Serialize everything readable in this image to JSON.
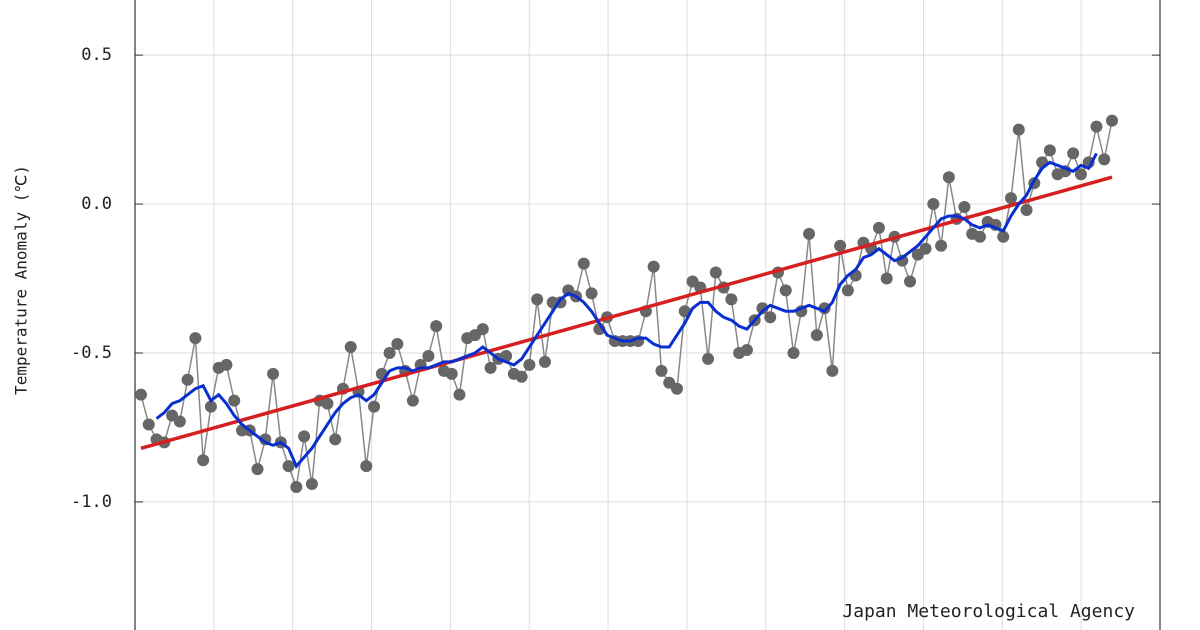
{
  "chart_data": {
    "type": "line",
    "y_label": "Temperature Anomaly (℃)",
    "annotation": "Japan Meteorological Agency",
    "categories": [
      null,
      null,
      null,
      null,
      null,
      null,
      null,
      null,
      null,
      null,
      null,
      null,
      null,
      null,
      null,
      null,
      null,
      null,
      null,
      null,
      null,
      null,
      null,
      null,
      null,
      null,
      null,
      null,
      null,
      null,
      null,
      null,
      null,
      null,
      null,
      null,
      null,
      null,
      null,
      null,
      null,
      null,
      null,
      null,
      null,
      null,
      null,
      null,
      null,
      null,
      null,
      null,
      null,
      null,
      null,
      null,
      null,
      null,
      null,
      null,
      null,
      null,
      null,
      null,
      null,
      null,
      null,
      null,
      null,
      null,
      null,
      null,
      null,
      null,
      null,
      null,
      null,
      null,
      null,
      null,
      null,
      null,
      null,
      null,
      null,
      null,
      null,
      null,
      null,
      null,
      null,
      null,
      null,
      null,
      null,
      null,
      null,
      null,
      null,
      null,
      null,
      null,
      null,
      null,
      null,
      null,
      null,
      null,
      null,
      null,
      null,
      null,
      null,
      null,
      null,
      null,
      null,
      null,
      null,
      null,
      null,
      null,
      null,
      null,
      null,
      null
    ],
    "series": [
      {
        "color": "#666666",
        "markers": true,
        "values": [
          -0.64,
          -0.74,
          -0.79,
          -0.8,
          -0.71,
          -0.73,
          -0.59,
          -0.45,
          -0.86,
          -0.68,
          -0.55,
          -0.54,
          -0.66,
          -0.76,
          -0.76,
          -0.89,
          -0.79,
          -0.57,
          -0.8,
          -0.88,
          -0.95,
          -0.78,
          -0.94,
          -0.66,
          -0.67,
          -0.79,
          -0.62,
          -0.48,
          -0.63,
          -0.88,
          -0.68,
          -0.57,
          -0.5,
          -0.47,
          -0.56,
          -0.66,
          -0.54,
          -0.51,
          -0.41,
          -0.56,
          -0.57,
          -0.64,
          -0.45,
          -0.44,
          -0.42,
          -0.55,
          -0.52,
          -0.51,
          -0.57,
          -0.58,
          -0.54,
          -0.32,
          -0.53,
          -0.33,
          -0.33,
          -0.29,
          -0.31,
          -0.2,
          -0.3,
          -0.42,
          -0.38,
          -0.46,
          -0.46,
          -0.46,
          -0.46,
          -0.36,
          -0.21,
          -0.56,
          -0.6,
          -0.62,
          -0.36,
          -0.26,
          -0.28,
          -0.52,
          -0.23,
          -0.28,
          -0.32,
          -0.5,
          -0.49,
          -0.39,
          -0.35,
          -0.38,
          -0.23,
          -0.29,
          -0.5,
          -0.36,
          -0.1,
          -0.44,
          -0.35,
          -0.56,
          -0.14,
          -0.29,
          -0.24,
          -0.13,
          -0.15,
          -0.08,
          -0.25,
          -0.11,
          -0.19,
          -0.26,
          -0.17,
          -0.15,
          0.0,
          -0.14,
          0.09,
          -0.05,
          -0.01,
          -0.1,
          -0.11,
          -0.06,
          -0.07,
          -0.11,
          0.02,
          0.25,
          -0.02,
          0.07,
          0.14,
          0.18,
          0.1,
          0.11,
          0.17,
          0.1,
          0.14,
          0.26,
          0.15,
          0.28
        ]
      },
      {
        "color": "#0a2fd0",
        "markers": false,
        "values": [
          null,
          null,
          -0.72,
          -0.7,
          -0.67,
          -0.66,
          -0.64,
          -0.62,
          -0.61,
          -0.66,
          -0.64,
          -0.67,
          -0.71,
          -0.74,
          -0.76,
          -0.78,
          -0.8,
          -0.81,
          -0.8,
          -0.82,
          -0.88,
          -0.85,
          -0.82,
          -0.78,
          -0.74,
          -0.7,
          -0.67,
          -0.65,
          -0.64,
          -0.66,
          -0.64,
          -0.6,
          -0.56,
          -0.55,
          -0.55,
          -0.56,
          -0.55,
          -0.55,
          -0.54,
          -0.53,
          -0.53,
          -0.52,
          -0.51,
          -0.5,
          -0.48,
          -0.5,
          -0.52,
          -0.53,
          -0.54,
          -0.52,
          -0.48,
          -0.44,
          -0.4,
          -0.36,
          -0.32,
          -0.3,
          -0.31,
          -0.33,
          -0.36,
          -0.4,
          -0.44,
          -0.45,
          -0.46,
          -0.46,
          -0.45,
          -0.45,
          -0.47,
          -0.48,
          -0.48,
          -0.44,
          -0.4,
          -0.35,
          -0.33,
          -0.33,
          -0.36,
          -0.38,
          -0.39,
          -0.41,
          -0.42,
          -0.39,
          -0.36,
          -0.34,
          -0.35,
          -0.36,
          -0.36,
          -0.35,
          -0.34,
          -0.35,
          -0.36,
          -0.33,
          -0.27,
          -0.24,
          -0.22,
          -0.18,
          -0.17,
          -0.15,
          -0.17,
          -0.19,
          -0.18,
          -0.16,
          -0.14,
          -0.11,
          -0.08,
          -0.05,
          -0.04,
          -0.04,
          -0.05,
          -0.07,
          -0.08,
          -0.07,
          -0.08,
          -0.09,
          -0.04,
          0.0,
          0.03,
          0.08,
          0.12,
          0.14,
          0.13,
          0.12,
          0.11,
          0.13,
          0.12,
          0.17,
          null,
          null
        ]
      }
    ],
    "trend": {
      "color": "#d62020",
      "values": [
        -0.82,
        0.09
      ]
    },
    "ylim": [
      -1.43,
      0.685
    ],
    "yticks": [
      0.5,
      {
        "value": 0,
        "label": "0.0"
      },
      -0.5,
      {
        "value": -1,
        "label": "-1.0"
      }
    ],
    "grid": true
  }
}
